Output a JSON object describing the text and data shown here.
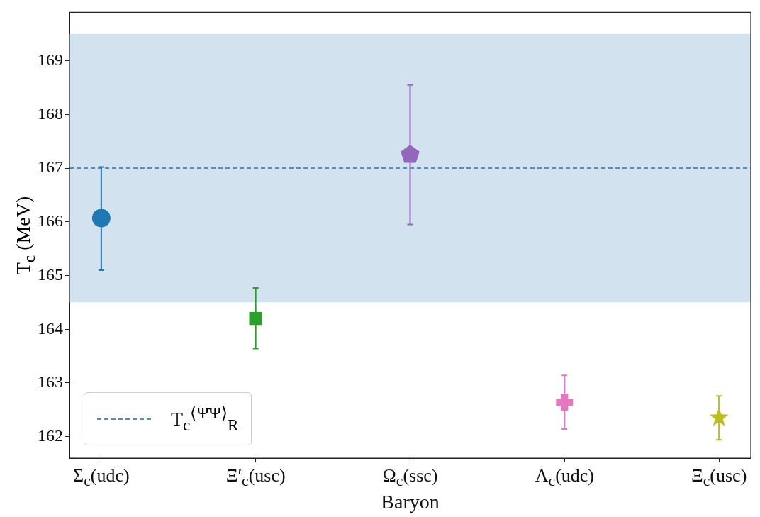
{
  "chart_data": {
    "type": "scatter",
    "xlabel": "Baryon",
    "ylabel": "T$_{c}$ (MeV)",
    "categories": [
      "Σ$_{c}$(udc)",
      "Ξ′$_{c}$(usc)",
      "Ω$_{c}$(ssc)",
      "Λ$_{c}$(udc)",
      "Ξ$_{c}$(usc)"
    ],
    "series": [
      {
        "x": [
          "Σ$_{c}$(udc)"
        ],
        "values": [
          166.07
        ],
        "errors": [
          [
            165.1,
            167.02
          ]
        ],
        "color": "#1f77b4",
        "marker": "circle"
      },
      {
        "x": [
          "Ξ′$_{c}$(usc)"
        ],
        "values": [
          164.2
        ],
        "errors": [
          [
            163.64,
            164.77
          ]
        ],
        "color": "#2ca02c",
        "marker": "square"
      },
      {
        "x": [
          "Ω$_{c}$(ssc)"
        ],
        "values": [
          167.25
        ],
        "errors": [
          [
            165.95,
            168.55
          ]
        ],
        "color": "#9467bd"
      },
      {
        "x": [
          "Λ$_{c}$(udc)"
        ],
        "values": [
          162.64
        ],
        "errors": [
          [
            162.14,
            163.14
          ]
        ],
        "color": "#e377c2",
        "marker": "cross"
      },
      {
        "x": [
          "Ξ$_{c}$(usc)"
        ],
        "values": [
          162.35
        ],
        "errors": [
          [
            161.94,
            162.76
          ]
        ],
        "color": "#bcbd22",
        "marker": "star"
      }
    ],
    "ylim": [
      161.6,
      169.9
    ],
    "yticks": [
      162,
      163,
      164,
      165,
      166,
      167,
      168,
      169
    ],
    "ref_lines": [
      {
        "axis": "y",
        "value": 167,
        "label": "T$_{c}$$^{⟨Ψ̄Ψ⟩}$$_{R}$",
        "color": "#4a90c8",
        "line_style": "dashed"
      }
    ],
    "bands": [
      {
        "axis": "y",
        "from": 164.5,
        "to": 169.5,
        "color": "#d2e3ef"
      }
    ],
    "legend": "bottom left"
  }
}
